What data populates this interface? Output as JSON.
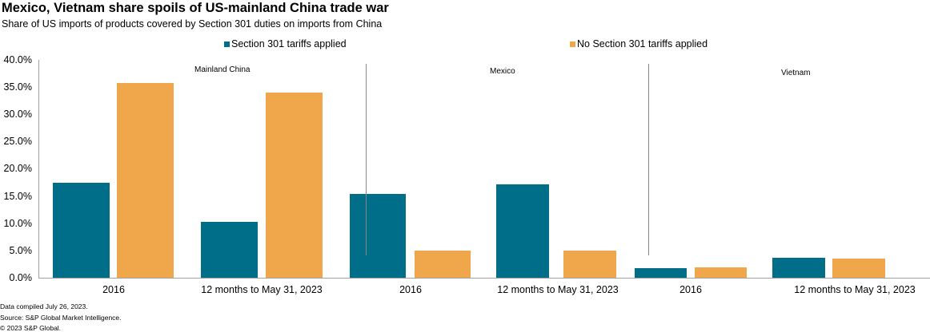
{
  "header": {
    "title": "Mexico, Vietnam share spoils of US-mainland China trade war",
    "subtitle": "Share of US imports of products covered  by Section 301 duties on imports from China"
  },
  "legend": [
    {
      "label": "Section 301 tariffs applied",
      "color": "#006e89"
    },
    {
      "label": "No Section 301 tariffs applied",
      "color": "#f0a64a"
    }
  ],
  "y_ticks": [
    "40.0%",
    "35.0%",
    "30.0%",
    "25.0%",
    "20.0%",
    "15.0%",
    "10.0%",
    "5.0%",
    "0.0%"
  ],
  "groups": [
    "Mainland China",
    "Mexico",
    "Vietnam"
  ],
  "x_labels": [
    "2016",
    "12 months to May 31, 2023",
    "2016",
    "12 months to May 31, 2023",
    "2016",
    "12 months to May 31, 2023"
  ],
  "footer": {
    "line1": "Data compiled July 26, 2023.",
    "line2": "Source: S&P Global Market Intelligence.",
    "line3": "© 2023 S&P Global."
  },
  "chart_data": {
    "type": "bar",
    "title": "Mexico, Vietnam share spoils of US-mainland China trade war",
    "subtitle": "Share of US imports of products covered  by Section 301 duties on imports from China",
    "categories": [
      "Mainland China | 2016",
      "Mainland China | 12 months to May 31, 2023",
      "Mexico | 2016",
      "Mexico | 12 months to May 31, 2023",
      "Vietnam | 2016",
      "Vietnam | 12 months to May 31, 2023"
    ],
    "series": [
      {
        "name": "Section 301 tariffs applied",
        "color": "#006e89",
        "values": [
          17.4,
          10.2,
          15.4,
          17.1,
          1.8,
          3.7
        ]
      },
      {
        "name": "No Section 301 tariffs applied",
        "color": "#f0a64a",
        "values": [
          35.7,
          34.0,
          5.0,
          5.0,
          1.9,
          3.5
        ]
      }
    ],
    "xlabel": "",
    "ylabel": "",
    "ylim": [
      0,
      40
    ],
    "y_tick_format": "percent, 1 decimal",
    "grid": false,
    "legend_position": "top"
  }
}
